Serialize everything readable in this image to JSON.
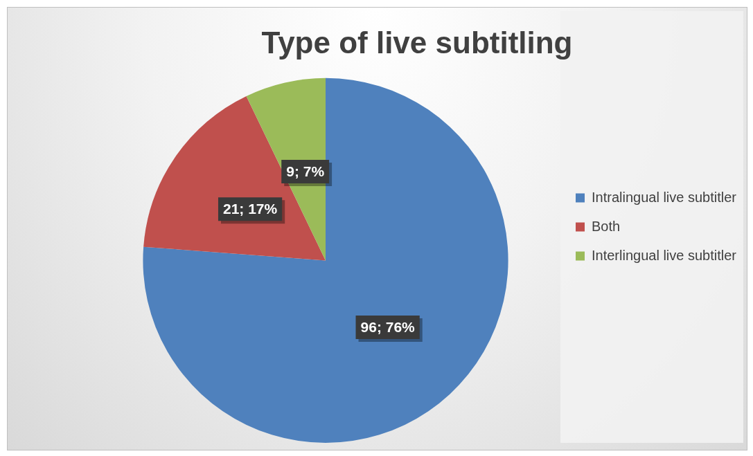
{
  "chart_data": {
    "type": "pie",
    "title": "Type of live subtitling",
    "categories": [
      "Intralingual live subtitler",
      "Both",
      "Interlingual live subtitler"
    ],
    "values": [
      96,
      21,
      9
    ],
    "colors": [
      "#4f81bd",
      "#c0504d",
      "#9bbb59"
    ],
    "value_labels": [
      "96; 76%",
      "21; 17%",
      "9; 7%"
    ],
    "legend": "right"
  }
}
